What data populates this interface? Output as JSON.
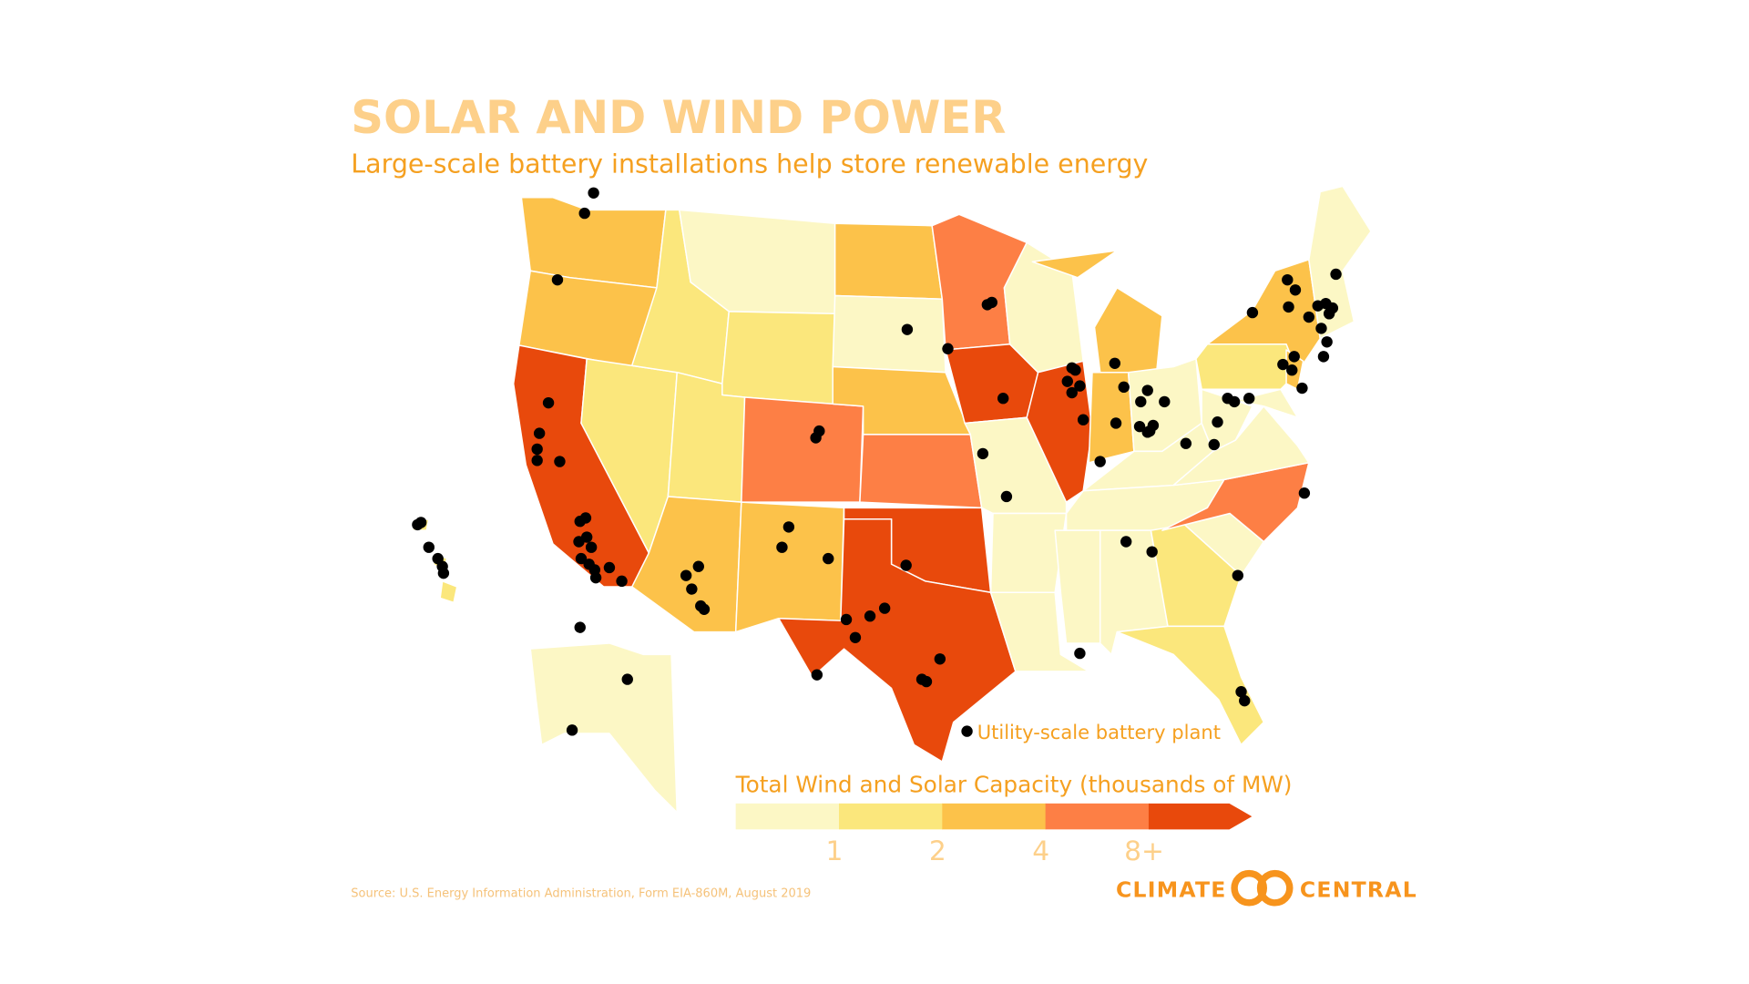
{
  "title": "SOLAR AND WIND POWER",
  "subtitle": "Large-scale battery installations help store renewable energy",
  "marker_legend": "Utility-scale battery plant",
  "legend": {
    "title": "Total Wind and Solar Capacity (thousands of MW)",
    "colors": [
      "#fcf7c5",
      "#fbe77c",
      "#fcc24a",
      "#fd7f45",
      "#e8490c"
    ],
    "ticks": [
      1,
      2,
      4,
      {
        "value": 8,
        "label": "8+"
      }
    ]
  },
  "source": "Source: U.S. Energy Information Administration, Form EIA-860M, August 2019",
  "logo": {
    "left": "CLIMATE",
    "right": "CENTRAL"
  }
}
